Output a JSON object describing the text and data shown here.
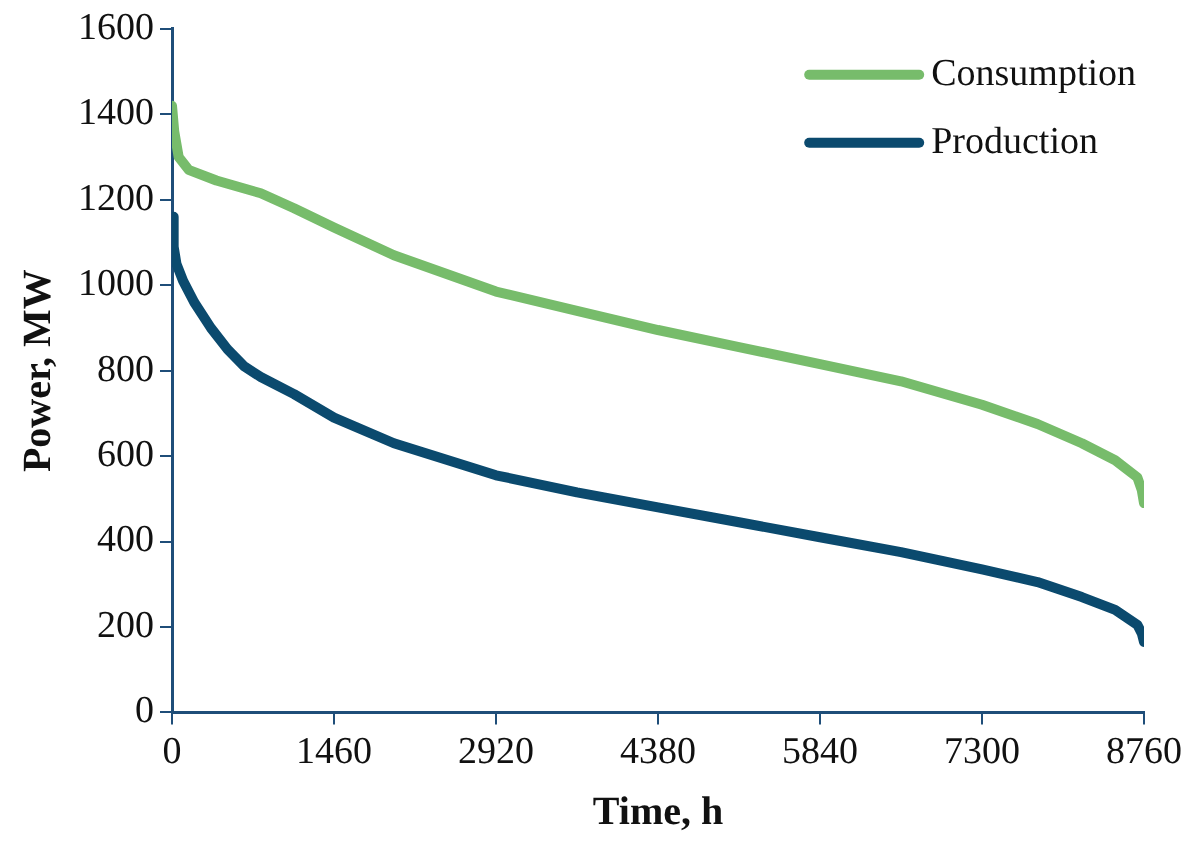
{
  "chart_data": {
    "type": "line",
    "xlabel": "Time, h",
    "ylabel": "Power, MW",
    "xlim": [
      0,
      8760
    ],
    "xticks": [
      0,
      1460,
      2920,
      4380,
      5840,
      7300,
      8760
    ],
    "ylim": [
      0,
      1600
    ],
    "yticks": [
      0,
      200,
      400,
      600,
      800,
      1000,
      1200,
      1400,
      1600
    ],
    "grid": false,
    "legend": "top right",
    "marker": "none",
    "line_style": "solid",
    "series": [
      {
        "name": "Consumption",
        "color": "#77bc6b",
        "x": [
          0,
          20,
          60,
          150,
          400,
          800,
          1100,
          1460,
          2000,
          2920,
          3650,
          4380,
          5110,
          5840,
          6570,
          7300,
          7800,
          8200,
          8500,
          8700,
          8740,
          8760
        ],
        "values": [
          1420,
          1360,
          1300,
          1270,
          1245,
          1215,
          1180,
          1135,
          1070,
          985,
          940,
          895,
          855,
          815,
          775,
          720,
          675,
          630,
          590,
          550,
          520,
          490
        ]
      },
      {
        "name": "Production",
        "color": "#0b4a6e",
        "x": [
          0,
          15,
          40,
          100,
          200,
          350,
          500,
          650,
          800,
          1100,
          1460,
          2000,
          2920,
          3650,
          4380,
          5110,
          5840,
          6570,
          7300,
          7800,
          8200,
          8500,
          8700,
          8740,
          8760
        ],
        "values": [
          1160,
          1090,
          1050,
          1010,
          960,
          900,
          850,
          810,
          785,
          745,
          690,
          630,
          555,
          515,
          480,
          445,
          410,
          375,
          335,
          305,
          270,
          240,
          205,
          185,
          165
        ]
      }
    ]
  }
}
